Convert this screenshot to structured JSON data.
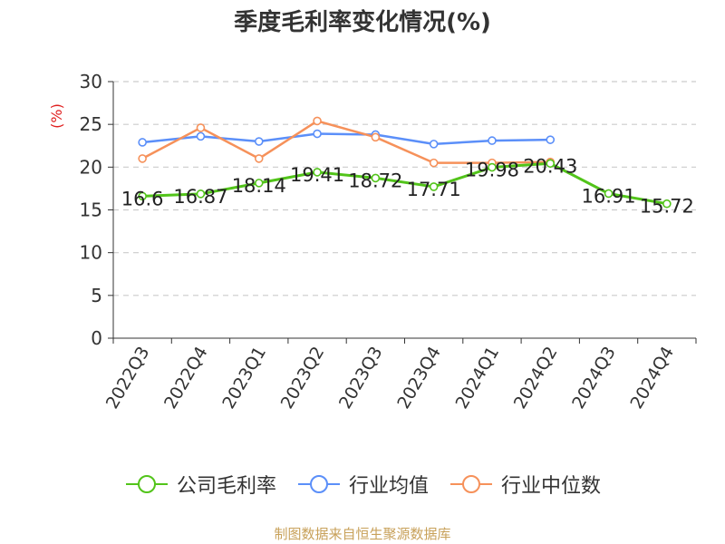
{
  "chart_data": {
    "type": "line",
    "title": "季度毛利率变化情况(%)",
    "ylabel": "(%)",
    "xlabel": "",
    "ylim": [
      0,
      30
    ],
    "yticks": [
      0,
      5,
      10,
      15,
      20,
      25,
      30
    ],
    "grid": true,
    "legend_position": "bottom",
    "categories": [
      "2022Q3",
      "2022Q4",
      "2023Q1",
      "2023Q2",
      "2023Q3",
      "2023Q4",
      "2024Q1",
      "2024Q2",
      "2024Q3",
      "2024Q4"
    ],
    "series": [
      {
        "name": "公司毛利率",
        "color": "#52c41a",
        "values": [
          16.6,
          16.87,
          18.14,
          19.41,
          18.72,
          17.71,
          19.98,
          20.43,
          16.91,
          15.72
        ],
        "labels": [
          "16.6",
          "16.87",
          "18.14",
          "19.41",
          "18.72",
          "17.71",
          "19.98",
          "20.43",
          "16.91",
          "15.72"
        ]
      },
      {
        "name": "行业均值",
        "color": "#5b8ff9",
        "values": [
          22.9,
          23.6,
          23.0,
          23.9,
          23.8,
          22.7,
          23.1,
          23.2,
          null,
          null
        ]
      },
      {
        "name": "行业中位数",
        "color": "#f6915a",
        "values": [
          21.0,
          24.6,
          21.0,
          25.4,
          23.5,
          20.5,
          20.5,
          20.6,
          null,
          null
        ]
      }
    ]
  },
  "footer": {
    "source_note": "制图数据来自恒生聚源数据库"
  }
}
